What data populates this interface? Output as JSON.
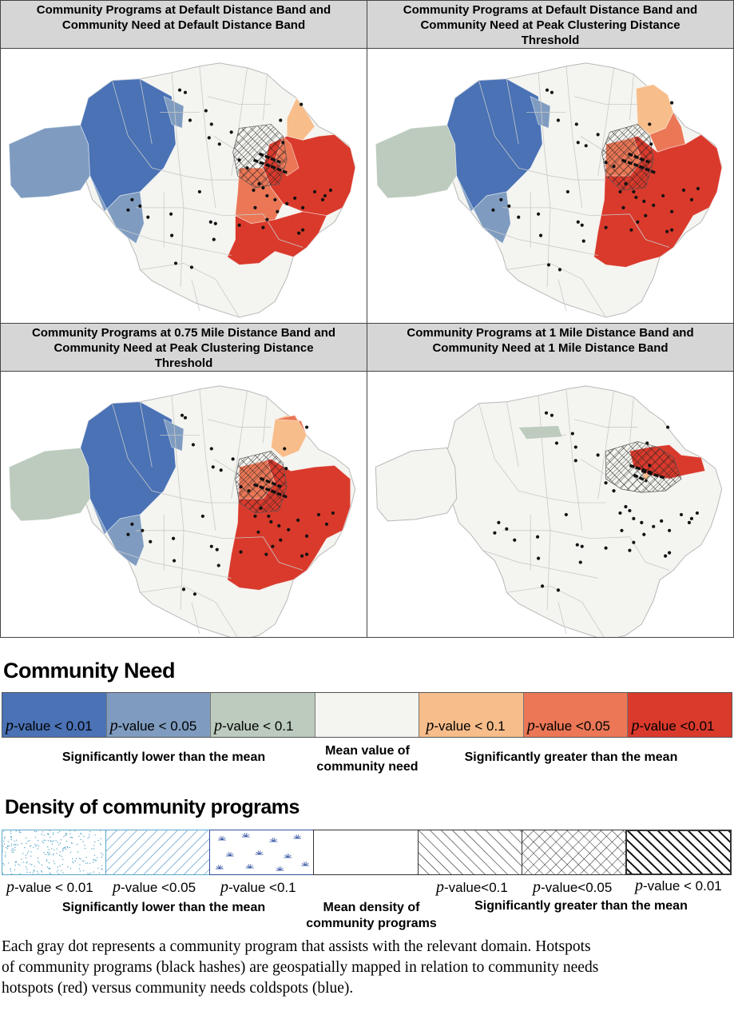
{
  "panels": [
    {
      "title_line1": "Community Programs at Default Distance Band and",
      "title_line2": "Community Need at Default Distance Band",
      "title_line3": ""
    },
    {
      "title_line1": "Community Programs at Default Distance Band and",
      "title_line2": "Community Need at Peak Clustering Distance",
      "title_line3": "Threshold"
    },
    {
      "title_line1": "Community Programs at 0.75 Mile Distance Band and",
      "title_line2": "Community Need at Peak Clustering Distance",
      "title_line3": "Threshold"
    },
    {
      "title_line1": "Community Programs at 1 Mile Distance Band and",
      "title_line2": "Community Need at 1 Mile Distance Band",
      "title_line3": ""
    }
  ],
  "colors": {
    "cold_01": "#4a72b5",
    "cold_05": "#7f9cc0",
    "cold_1": "#bccbbd",
    "mean": "#f4f4f0",
    "hot_1": "#f7bd8a",
    "hot_05": "#eb7756",
    "hot_01": "#d93a2c",
    "dot": "#111111"
  },
  "legend": {
    "need_title": "Community Need",
    "need_items": [
      {
        "p": "p",
        "text": "-value < 0.01"
      },
      {
        "p": "p",
        "text": "-value < 0.05"
      },
      {
        "p": "p",
        "text": "-value < 0.1"
      },
      {
        "p": "",
        "text": ""
      },
      {
        "p": "p",
        "text": "-value < 0.1"
      },
      {
        "p": "p",
        "text": "-value <0.05"
      },
      {
        "p": "p",
        "text": "-value <0.01"
      }
    ],
    "need_low_label": "Significantly lower than the mean",
    "need_mean_line1": "Mean value of",
    "need_mean_line2": "community need",
    "need_high_label": "Significantly greater than the mean",
    "density_title": "Density of community programs",
    "density_items": [
      {
        "p": "p",
        "text": "-value < 0.01"
      },
      {
        "p": "p",
        "text": "-value <0.05"
      },
      {
        "p": "p",
        "text": "-value <0.1"
      },
      {
        "p": "",
        "text": ""
      },
      {
        "p": "p",
        "text": "-value<0.1"
      },
      {
        "p": "p",
        "text": "-value<0.05"
      },
      {
        "p": "p",
        "text": "-value < 0.01"
      }
    ],
    "density_low_label": "Significantly lower than the mean",
    "density_mean_line1": "Mean density of",
    "density_mean_line2": "community programs",
    "density_high_label": "Significantly greater than the mean"
  },
  "caption": {
    "line1": "Each gray dot represents a community program that assists with the relevant domain. Hotspots",
    "line2": "of community programs (black hashes) are geospatially mapped in relation to community needs",
    "line3": "hotspots (red) versus community needs coldspots (blue)."
  }
}
